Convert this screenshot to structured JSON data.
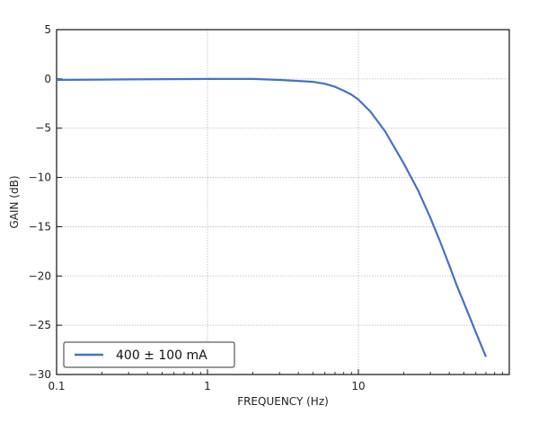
{
  "chart_data": {
    "type": "line",
    "title": "",
    "xlabel": "FREQUENCY (Hz)",
    "ylabel": "GAIN (dB)",
    "x_scale": "log",
    "xlim": [
      0.1,
      100
    ],
    "ylim": [
      -30,
      5
    ],
    "x_ticks": [
      0.1,
      1,
      10
    ],
    "x_tick_labels": [
      "0.1",
      "1",
      "10"
    ],
    "y_ticks": [
      5,
      0,
      -5,
      -10,
      -15,
      -20,
      -25,
      -30
    ],
    "y_tick_labels": [
      "5",
      "0",
      "−5",
      "−10",
      "−15",
      "−20",
      "−25",
      "−30"
    ],
    "grid": true,
    "legend_position": "lower-left",
    "series": [
      {
        "name": "400 ± 100 mA",
        "color": "#4472c4",
        "x": [
          0.1,
          0.3,
          1,
          2,
          3,
          4,
          5,
          6,
          7,
          8,
          9,
          10,
          12,
          15,
          20,
          25,
          30,
          35,
          40,
          45,
          50,
          60,
          70
        ],
        "y": [
          -0.1,
          -0.05,
          0.0,
          0.0,
          -0.1,
          -0.2,
          -0.3,
          -0.5,
          -0.8,
          -1.2,
          -1.6,
          -2.1,
          -3.3,
          -5.3,
          -8.6,
          -11.4,
          -14.1,
          -16.6,
          -18.9,
          -21.0,
          -22.7,
          -25.7,
          -28.2
        ]
      }
    ]
  }
}
